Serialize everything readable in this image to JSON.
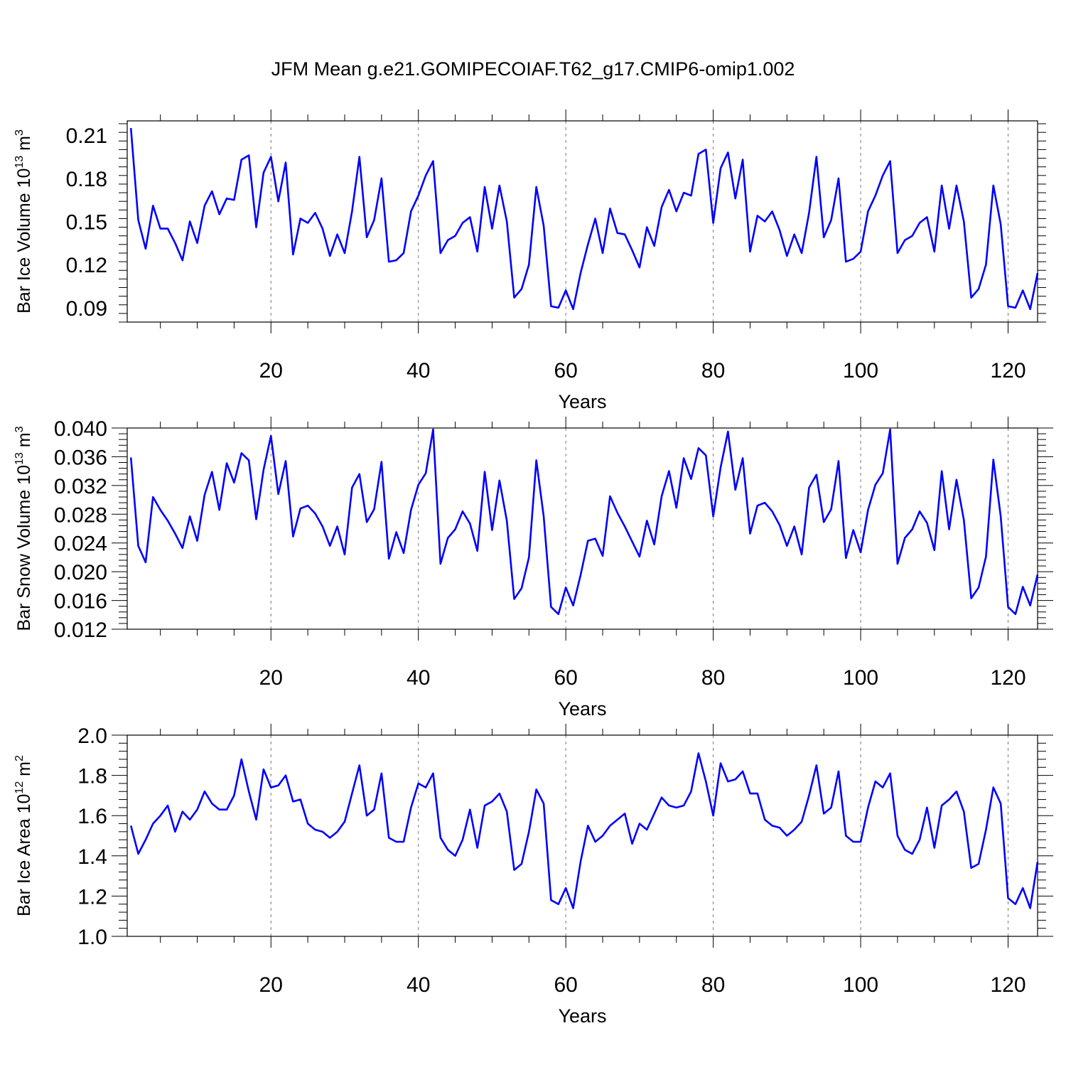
{
  "figure": {
    "title": "JFM Mean g.e21.GOMIPECOIAF.T62_g17.CMIP6-omip1.002",
    "line_color": "#0000ff"
  },
  "chart_data": [
    {
      "type": "line",
      "ylabel": "Bar Ice Volume",
      "ylabel_unit_base": "10",
      "ylabel_unit_exp": "13",
      "ylabel_unit_sym": "m",
      "ylabel_unit_pow": "3",
      "xlabel": "Years",
      "xlim": [
        0.5,
        124
      ],
      "ylim": [
        0.08,
        0.22
      ],
      "yticks": [
        0.09,
        0.12,
        0.15,
        0.18,
        0.21
      ],
      "ytick_labels": [
        "0.09",
        "0.12",
        "0.15",
        "0.18",
        "0.21"
      ],
      "xticks": [
        20,
        40,
        60,
        80,
        100,
        120
      ],
      "xtick_labels": [
        "20",
        "40",
        "60",
        "80",
        "100",
        "120"
      ],
      "grid_x": [
        20,
        40,
        60,
        80,
        100,
        120
      ],
      "x_start": 1,
      "values": [
        0.215,
        0.151,
        0.131,
        0.161,
        0.145,
        0.145,
        0.135,
        0.123,
        0.15,
        0.135,
        0.161,
        0.171,
        0.155,
        0.166,
        0.165,
        0.193,
        0.196,
        0.146,
        0.184,
        0.195,
        0.164,
        0.191,
        0.127,
        0.152,
        0.149,
        0.156,
        0.145,
        0.126,
        0.141,
        0.128,
        0.157,
        0.195,
        0.139,
        0.151,
        0.18,
        0.122,
        0.123,
        0.128,
        0.157,
        0.168,
        0.182,
        0.192,
        0.128,
        0.137,
        0.14,
        0.149,
        0.153,
        0.129,
        0.174,
        0.145,
        0.175,
        0.15,
        0.097,
        0.103,
        0.12,
        0.174,
        0.147,
        0.091,
        0.09,
        0.102,
        0.089,
        0.114,
        0.134,
        0.152,
        0.128,
        0.159,
        0.142,
        0.141,
        0.13,
        0.118,
        0.146,
        0.133,
        0.16,
        0.172,
        0.157,
        0.17,
        0.168,
        0.197,
        0.2,
        0.149,
        0.187,
        0.198,
        0.166,
        0.193,
        0.129,
        0.154,
        0.15,
        0.157,
        0.144,
        0.126,
        0.141,
        0.128,
        0.156,
        0.195,
        0.139,
        0.151,
        0.18,
        0.122,
        0.124,
        0.129,
        0.157,
        0.168,
        0.182,
        0.192,
        0.128,
        0.137,
        0.14,
        0.149,
        0.153,
        0.129,
        0.175,
        0.145,
        0.175,
        0.15,
        0.097,
        0.103,
        0.12,
        0.175,
        0.148,
        0.091,
        0.09,
        0.102,
        0.089,
        0.114
      ]
    },
    {
      "type": "line",
      "ylabel": "Bar Snow Volume",
      "ylabel_unit_base": "10",
      "ylabel_unit_exp": "13",
      "ylabel_unit_sym": "m",
      "ylabel_unit_pow": "3",
      "xlabel": "Years",
      "xlim": [
        0.5,
        124
      ],
      "ylim": [
        0.012,
        0.04
      ],
      "yticks": [
        0.012,
        0.016,
        0.02,
        0.024,
        0.028,
        0.032,
        0.036,
        0.04
      ],
      "ytick_labels": [
        "0.012",
        "0.016",
        "0.020",
        "0.024",
        "0.028",
        "0.032",
        "0.036",
        "0.040"
      ],
      "xticks": [
        20,
        40,
        60,
        80,
        100,
        120
      ],
      "xtick_labels": [
        "20",
        "40",
        "60",
        "80",
        "100",
        "120"
      ],
      "grid_x": [
        20,
        40,
        60,
        80,
        100,
        120
      ],
      "x_start": 1,
      "values": [
        0.0359,
        0.0236,
        0.0213,
        0.0304,
        0.0286,
        0.0271,
        0.0253,
        0.0233,
        0.0277,
        0.0243,
        0.0307,
        0.0339,
        0.0286,
        0.0351,
        0.0324,
        0.0365,
        0.0355,
        0.0273,
        0.0342,
        0.0389,
        0.0308,
        0.0354,
        0.0249,
        0.0288,
        0.0292,
        0.0281,
        0.0263,
        0.0236,
        0.0263,
        0.0224,
        0.0317,
        0.0336,
        0.0269,
        0.0287,
        0.0353,
        0.0218,
        0.0255,
        0.0226,
        0.0286,
        0.0321,
        0.0337,
        0.0398,
        0.0211,
        0.0247,
        0.0259,
        0.0284,
        0.0267,
        0.0229,
        0.0339,
        0.0258,
        0.0327,
        0.0271,
        0.0162,
        0.0177,
        0.022,
        0.0355,
        0.0277,
        0.0151,
        0.0141,
        0.0178,
        0.0153,
        0.0195,
        0.0243,
        0.0246,
        0.0222,
        0.0305,
        0.0282,
        0.0263,
        0.0242,
        0.0221,
        0.0271,
        0.0238,
        0.0305,
        0.034,
        0.0289,
        0.0358,
        0.0329,
        0.0372,
        0.0362,
        0.0277,
        0.0345,
        0.0395,
        0.0314,
        0.0358,
        0.0253,
        0.0292,
        0.0296,
        0.0284,
        0.0265,
        0.0236,
        0.0263,
        0.0224,
        0.0317,
        0.0335,
        0.0269,
        0.0287,
        0.0354,
        0.0219,
        0.0258,
        0.0227,
        0.0286,
        0.0321,
        0.0337,
        0.0398,
        0.0211,
        0.0247,
        0.0259,
        0.0284,
        0.0268,
        0.023,
        0.034,
        0.0259,
        0.0328,
        0.0272,
        0.0163,
        0.0178,
        0.0221,
        0.0356,
        0.0277,
        0.0151,
        0.0141,
        0.0179,
        0.0153,
        0.0196
      ]
    },
    {
      "type": "line",
      "ylabel": "Bar Ice Area",
      "ylabel_unit_base": "10",
      "ylabel_unit_exp": "12",
      "ylabel_unit_sym": "m",
      "ylabel_unit_pow": "2",
      "xlabel": "Years",
      "xlim": [
        0.5,
        124
      ],
      "ylim": [
        1.0,
        2.0
      ],
      "yticks": [
        1.0,
        1.2,
        1.4,
        1.6,
        1.8,
        2.0
      ],
      "ytick_labels": [
        "1.0",
        "1.2",
        "1.4",
        "1.6",
        "1.8",
        "2.0"
      ],
      "xticks": [
        20,
        40,
        60,
        80,
        100,
        120
      ],
      "xtick_labels": [
        "20",
        "40",
        "60",
        "80",
        "100",
        "120"
      ],
      "grid_x": [
        20,
        40,
        60,
        80,
        100,
        120
      ],
      "x_start": 1,
      "values": [
        1.55,
        1.41,
        1.48,
        1.56,
        1.6,
        1.65,
        1.52,
        1.62,
        1.58,
        1.63,
        1.72,
        1.66,
        1.63,
        1.63,
        1.7,
        1.88,
        1.72,
        1.58,
        1.83,
        1.74,
        1.75,
        1.8,
        1.67,
        1.68,
        1.56,
        1.53,
        1.52,
        1.49,
        1.52,
        1.57,
        1.71,
        1.85,
        1.6,
        1.63,
        1.81,
        1.49,
        1.47,
        1.47,
        1.64,
        1.76,
        1.74,
        1.81,
        1.49,
        1.43,
        1.4,
        1.48,
        1.63,
        1.44,
        1.65,
        1.67,
        1.71,
        1.62,
        1.33,
        1.36,
        1.52,
        1.73,
        1.66,
        1.18,
        1.16,
        1.24,
        1.14,
        1.37,
        1.55,
        1.47,
        1.5,
        1.55,
        1.58,
        1.61,
        1.46,
        1.56,
        1.53,
        1.61,
        1.69,
        1.65,
        1.64,
        1.65,
        1.72,
        1.91,
        1.77,
        1.6,
        1.86,
        1.77,
        1.78,
        1.82,
        1.71,
        1.71,
        1.58,
        1.55,
        1.54,
        1.5,
        1.53,
        1.57,
        1.7,
        1.85,
        1.61,
        1.64,
        1.82,
        1.5,
        1.47,
        1.47,
        1.64,
        1.77,
        1.74,
        1.81,
        1.5,
        1.43,
        1.41,
        1.48,
        1.64,
        1.44,
        1.65,
        1.68,
        1.72,
        1.62,
        1.34,
        1.36,
        1.53,
        1.74,
        1.66,
        1.19,
        1.16,
        1.24,
        1.14,
        1.37
      ]
    }
  ]
}
